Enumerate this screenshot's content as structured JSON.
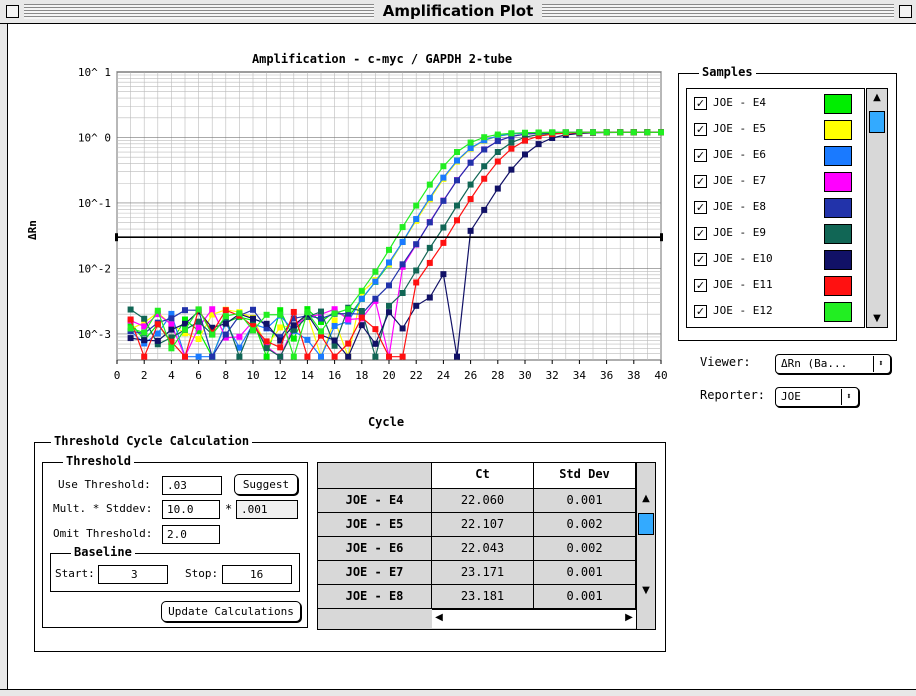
{
  "window": {
    "title": "Amplification Plot"
  },
  "chart_data": {
    "type": "line",
    "title": "Amplification - c-myc / GAPDH   2-tube",
    "xlabel": "Cycle",
    "ylabel": "ΔRn",
    "yscale": "log",
    "xlim": [
      0,
      40
    ],
    "ylim": [
      0.0004,
      10
    ],
    "x_ticks": [
      "0",
      "2",
      "4",
      "6",
      "8",
      "10",
      "12",
      "14",
      "16",
      "18",
      "20",
      "22",
      "24",
      "26",
      "28",
      "30",
      "32",
      "34",
      "36",
      "38",
      "40"
    ],
    "y_ticks": [
      "10^ 1",
      "10^ 0",
      "10^-1",
      "10^-2",
      "10^-3"
    ],
    "grid": true,
    "threshold": 0.03,
    "series": [
      {
        "name": "JOE - E4",
        "color": "#00ee00",
        "ct": 22.06
      },
      {
        "name": "JOE - E5",
        "color": "#ffff00",
        "ct": 22.107
      },
      {
        "name": "JOE - E6",
        "color": "#1a7aff",
        "ct": 22.043
      },
      {
        "name": "JOE - E7",
        "color": "#ff00ff",
        "ct": 23.171
      },
      {
        "name": "JOE - E8",
        "color": "#2233aa",
        "ct": 23.181
      },
      {
        "name": "JOE - E9",
        "color": "#116655",
        "ct": 24.4
      },
      {
        "name": "JOE - E10",
        "color": "#111166",
        "ct": 26.6
      },
      {
        "name": "JOE - E11",
        "color": "#ff1111",
        "ct": 25.1
      },
      {
        "name": "JOE - E12",
        "color": "#22ee22",
        "ct": 21.4
      }
    ]
  },
  "samples": {
    "label": "Samples",
    "items": [
      {
        "name": "JOE - E4",
        "checked": true,
        "color": "#00ee00"
      },
      {
        "name": "JOE - E5",
        "checked": true,
        "color": "#ffff00"
      },
      {
        "name": "JOE - E6",
        "checked": true,
        "color": "#1a7aff"
      },
      {
        "name": "JOE - E7",
        "checked": true,
        "color": "#ff00ff"
      },
      {
        "name": "JOE - E8",
        "checked": true,
        "color": "#2233aa"
      },
      {
        "name": "JOE - E9",
        "checked": true,
        "color": "#116655"
      },
      {
        "name": "JOE - E10",
        "checked": true,
        "color": "#111166"
      },
      {
        "name": "JOE - E11",
        "checked": true,
        "color": "#ff1111"
      },
      {
        "name": "JOE - E12",
        "checked": true,
        "color": "#22ee22"
      }
    ]
  },
  "viewer": {
    "label": "Viewer:",
    "value": "ΔRn (Ba..."
  },
  "reporter": {
    "label": "Reporter:",
    "value": "JOE"
  },
  "threshold_calc": {
    "label": "Threshold Cycle Calculation",
    "threshold_label": "Threshold",
    "use_threshold_label": "Use Threshold:",
    "use_threshold_value": ".03",
    "suggest_label": "Suggest",
    "mult_label": "Mult. * Stddev:",
    "mult_value": "10.0",
    "times": "*",
    "stddev_value": ".001",
    "omit_label": "Omit Threshold:",
    "omit_value": "2.0",
    "baseline_label": "Baseline",
    "start_label": "Start:",
    "start_value": "3",
    "stop_label": "Stop:",
    "stop_value": "16",
    "update_label": "Update Calculations"
  },
  "ct_table": {
    "headers": [
      "Ct",
      "Std Dev"
    ],
    "rows": [
      {
        "name": "JOE - E4",
        "ct": "22.060",
        "sd": "0.001"
      },
      {
        "name": "JOE - E5",
        "ct": "22.107",
        "sd": "0.002"
      },
      {
        "name": "JOE - E6",
        "ct": "22.043",
        "sd": "0.002"
      },
      {
        "name": "JOE - E7",
        "ct": "23.171",
        "sd": "0.001"
      },
      {
        "name": "JOE - E8",
        "ct": "23.181",
        "sd": "0.001"
      }
    ]
  }
}
